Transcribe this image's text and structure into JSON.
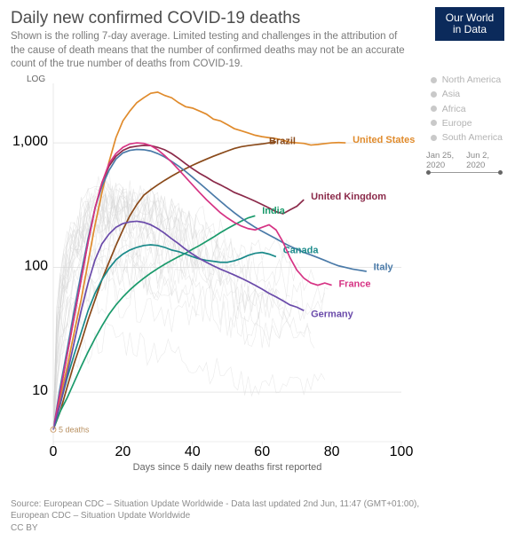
{
  "title": "Daily new confirmed COVID-19 deaths",
  "subtitle": "Shown is the rolling 7-day average. Limited testing and challenges in the attribution of the cause of death means that the number of confirmed deaths may not be an accurate count of the true number of deaths from COVID-19.",
  "logo_line1": "Our World",
  "logo_line2": "in Data",
  "scale_label": "LOG",
  "x_axis_label": "Days since 5 daily new deaths first reported",
  "origin_marker": "5 deaths",
  "legend_regions": [
    "North America",
    "Asia",
    "Africa",
    "Europe",
    "South America"
  ],
  "timeline": {
    "start": "Jan 25, 2020",
    "end": "Jun 2, 2020"
  },
  "source_line1": "Source: European CDC – Situation Update Worldwide - Data last updated 2nd Jun, 11:47 (GMT+01:00),",
  "source_line2": "European CDC – Situation Update Worldwide",
  "license": "CC BY",
  "chart": {
    "type": "line",
    "xlim": [
      0,
      100
    ],
    "xtick_step": 20,
    "y_scale": "log",
    "ylim": [
      4,
      3000
    ],
    "yticks": [
      10,
      100,
      1000
    ],
    "plot_bg": "#ffffff",
    "grid_color": "#d9d9d9",
    "axis_fontsize": 10.5,
    "label_fontsize": 11,
    "line_width": 1.7,
    "bg_line_color": "#d6d6d6",
    "bg_line_width": 0.6,
    "bg_line_opacity": 0.5
  },
  "series": [
    {
      "name": "United States",
      "color": "#e08b2c",
      "label_x": 86,
      "label_y": 1000,
      "data": [
        [
          0,
          5
        ],
        [
          2,
          9
        ],
        [
          4,
          16
        ],
        [
          6,
          30
        ],
        [
          8,
          55
        ],
        [
          10,
          110
        ],
        [
          12,
          220
        ],
        [
          14,
          400
        ],
        [
          16,
          700
        ],
        [
          18,
          1100
        ],
        [
          20,
          1500
        ],
        [
          22,
          1800
        ],
        [
          24,
          2100
        ],
        [
          26,
          2300
        ],
        [
          28,
          2500
        ],
        [
          30,
          2550
        ],
        [
          32,
          2400
        ],
        [
          34,
          2300
        ],
        [
          36,
          2100
        ],
        [
          38,
          1950
        ],
        [
          40,
          1900
        ],
        [
          42,
          1800
        ],
        [
          44,
          1700
        ],
        [
          46,
          1550
        ],
        [
          48,
          1500
        ],
        [
          50,
          1400
        ],
        [
          52,
          1300
        ],
        [
          54,
          1250
        ],
        [
          56,
          1200
        ],
        [
          58,
          1150
        ],
        [
          60,
          1120
        ],
        [
          62,
          1100
        ],
        [
          64,
          1080
        ],
        [
          66,
          1050
        ],
        [
          68,
          1010
        ],
        [
          70,
          1000
        ],
        [
          72,
          990
        ],
        [
          74,
          960
        ],
        [
          76,
          970
        ],
        [
          78,
          985
        ],
        [
          80,
          1000
        ],
        [
          82,
          1005
        ],
        [
          84,
          1000
        ]
      ]
    },
    {
      "name": "Brazil",
      "color": "#8a4a1a",
      "label_x": 62,
      "label_y": 980,
      "data": [
        [
          0,
          5
        ],
        [
          2,
          7
        ],
        [
          4,
          11
        ],
        [
          6,
          17
        ],
        [
          8,
          25
        ],
        [
          10,
          38
        ],
        [
          12,
          55
        ],
        [
          14,
          80
        ],
        [
          16,
          110
        ],
        [
          18,
          150
        ],
        [
          20,
          200
        ],
        [
          22,
          260
        ],
        [
          24,
          320
        ],
        [
          26,
          380
        ],
        [
          28,
          420
        ],
        [
          30,
          460
        ],
        [
          32,
          500
        ],
        [
          34,
          540
        ],
        [
          36,
          580
        ],
        [
          38,
          620
        ],
        [
          40,
          660
        ],
        [
          42,
          700
        ],
        [
          44,
          740
        ],
        [
          46,
          780
        ],
        [
          48,
          820
        ],
        [
          50,
          860
        ],
        [
          52,
          900
        ],
        [
          54,
          930
        ],
        [
          56,
          950
        ],
        [
          58,
          965
        ],
        [
          60,
          980
        ],
        [
          62,
          1000
        ],
        [
          64,
          1020
        ]
      ]
    },
    {
      "name": "United Kingdom",
      "color": "#8b2a4a",
      "label_x": 74,
      "label_y": 350,
      "data": [
        [
          0,
          5
        ],
        [
          2,
          10
        ],
        [
          4,
          20
        ],
        [
          6,
          40
        ],
        [
          8,
          80
        ],
        [
          10,
          160
        ],
        [
          12,
          300
        ],
        [
          14,
          480
        ],
        [
          16,
          650
        ],
        [
          18,
          780
        ],
        [
          20,
          870
        ],
        [
          22,
          920
        ],
        [
          24,
          940
        ],
        [
          26,
          955
        ],
        [
          28,
          950
        ],
        [
          30,
          920
        ],
        [
          32,
          880
        ],
        [
          34,
          820
        ],
        [
          36,
          750
        ],
        [
          38,
          680
        ],
        [
          40,
          620
        ],
        [
          42,
          570
        ],
        [
          44,
          530
        ],
        [
          46,
          490
        ],
        [
          48,
          460
        ],
        [
          50,
          430
        ],
        [
          52,
          400
        ],
        [
          54,
          380
        ],
        [
          56,
          360
        ],
        [
          58,
          340
        ],
        [
          60,
          320
        ],
        [
          62,
          300
        ],
        [
          64,
          280
        ],
        [
          66,
          270
        ],
        [
          68,
          290
        ],
        [
          70,
          310
        ],
        [
          72,
          350
        ]
      ]
    },
    {
      "name": "India",
      "color": "#1a9a6b",
      "label_x": 60,
      "label_y": 270,
      "data": [
        [
          0,
          5
        ],
        [
          2,
          7
        ],
        [
          4,
          9
        ],
        [
          6,
          12
        ],
        [
          8,
          16
        ],
        [
          10,
          21
        ],
        [
          12,
          27
        ],
        [
          14,
          34
        ],
        [
          16,
          42
        ],
        [
          18,
          50
        ],
        [
          20,
          58
        ],
        [
          22,
          66
        ],
        [
          24,
          74
        ],
        [
          26,
          82
        ],
        [
          28,
          90
        ],
        [
          30,
          98
        ],
        [
          32,
          106
        ],
        [
          34,
          114
        ],
        [
          36,
          122
        ],
        [
          38,
          130
        ],
        [
          40,
          140
        ],
        [
          42,
          150
        ],
        [
          44,
          162
        ],
        [
          46,
          175
        ],
        [
          48,
          190
        ],
        [
          50,
          205
        ],
        [
          52,
          220
        ],
        [
          54,
          235
        ],
        [
          56,
          250
        ],
        [
          58,
          260
        ]
      ]
    },
    {
      "name": "Italy",
      "color": "#4a7aa8",
      "label_x": 92,
      "label_y": 95,
      "data": [
        [
          0,
          5
        ],
        [
          2,
          11
        ],
        [
          4,
          22
        ],
        [
          6,
          45
        ],
        [
          8,
          90
        ],
        [
          10,
          170
        ],
        [
          12,
          300
        ],
        [
          14,
          450
        ],
        [
          16,
          600
        ],
        [
          18,
          740
        ],
        [
          20,
          830
        ],
        [
          22,
          870
        ],
        [
          24,
          885
        ],
        [
          26,
          880
        ],
        [
          28,
          860
        ],
        [
          30,
          820
        ],
        [
          32,
          770
        ],
        [
          34,
          710
        ],
        [
          36,
          650
        ],
        [
          38,
          590
        ],
        [
          40,
          530
        ],
        [
          42,
          475
        ],
        [
          44,
          425
        ],
        [
          46,
          380
        ],
        [
          48,
          340
        ],
        [
          50,
          305
        ],
        [
          52,
          275
        ],
        [
          54,
          250
        ],
        [
          56,
          228
        ],
        [
          58,
          210
        ],
        [
          60,
          195
        ],
        [
          62,
          182
        ],
        [
          64,
          170
        ],
        [
          66,
          158
        ],
        [
          68,
          148
        ],
        [
          70,
          140
        ],
        [
          72,
          132
        ],
        [
          74,
          126
        ],
        [
          76,
          120
        ],
        [
          78,
          114
        ],
        [
          80,
          108
        ],
        [
          82,
          103
        ],
        [
          84,
          100
        ],
        [
          86,
          97
        ],
        [
          88,
          95
        ],
        [
          90,
          93
        ]
      ]
    },
    {
      "name": "Canada",
      "color": "#1a8a8a",
      "label_x": 66,
      "label_y": 130,
      "data": [
        [
          0,
          5
        ],
        [
          2,
          8
        ],
        [
          4,
          13
        ],
        [
          6,
          20
        ],
        [
          8,
          30
        ],
        [
          10,
          45
        ],
        [
          12,
          62
        ],
        [
          14,
          80
        ],
        [
          16,
          98
        ],
        [
          18,
          115
        ],
        [
          20,
          128
        ],
        [
          22,
          138
        ],
        [
          24,
          145
        ],
        [
          26,
          150
        ],
        [
          28,
          152
        ],
        [
          30,
          150
        ],
        [
          32,
          145
        ],
        [
          34,
          138
        ],
        [
          36,
          134
        ],
        [
          38,
          128
        ],
        [
          40,
          122
        ],
        [
          42,
          117
        ],
        [
          44,
          114
        ],
        [
          46,
          112
        ],
        [
          48,
          110
        ],
        [
          50,
          110
        ],
        [
          52,
          113
        ],
        [
          54,
          118
        ],
        [
          56,
          125
        ],
        [
          58,
          130
        ],
        [
          60,
          132
        ],
        [
          62,
          128
        ],
        [
          64,
          122
        ]
      ]
    },
    {
      "name": "France",
      "color": "#d63384",
      "label_x": 82,
      "label_y": 70,
      "data": [
        [
          0,
          5
        ],
        [
          2,
          10
        ],
        [
          4,
          20
        ],
        [
          6,
          40
        ],
        [
          8,
          80
        ],
        [
          10,
          160
        ],
        [
          12,
          300
        ],
        [
          14,
          480
        ],
        [
          16,
          680
        ],
        [
          18,
          820
        ],
        [
          20,
          920
        ],
        [
          22,
          980
        ],
        [
          24,
          1000
        ],
        [
          26,
          990
        ],
        [
          28,
          950
        ],
        [
          30,
          880
        ],
        [
          32,
          790
        ],
        [
          34,
          700
        ],
        [
          36,
          610
        ],
        [
          38,
          530
        ],
        [
          40,
          460
        ],
        [
          42,
          400
        ],
        [
          44,
          350
        ],
        [
          46,
          310
        ],
        [
          48,
          275
        ],
        [
          50,
          250
        ],
        [
          52,
          230
        ],
        [
          54,
          215
        ],
        [
          56,
          205
        ],
        [
          58,
          200
        ],
        [
          60,
          210
        ],
        [
          62,
          220
        ],
        [
          64,
          200
        ],
        [
          66,
          160
        ],
        [
          68,
          120
        ],
        [
          70,
          95
        ],
        [
          72,
          82
        ],
        [
          74,
          75
        ],
        [
          76,
          72
        ],
        [
          78,
          75
        ],
        [
          80,
          72
        ]
      ]
    },
    {
      "name": "Germany",
      "color": "#6a4aaa",
      "label_x": 74,
      "label_y": 40,
      "data": [
        [
          0,
          5
        ],
        [
          2,
          8
        ],
        [
          4,
          14
        ],
        [
          6,
          25
        ],
        [
          8,
          45
        ],
        [
          10,
          75
        ],
        [
          12,
          115
        ],
        [
          14,
          155
        ],
        [
          16,
          185
        ],
        [
          18,
          210
        ],
        [
          20,
          225
        ],
        [
          22,
          232
        ],
        [
          24,
          235
        ],
        [
          26,
          230
        ],
        [
          28,
          220
        ],
        [
          30,
          205
        ],
        [
          32,
          188
        ],
        [
          34,
          170
        ],
        [
          36,
          155
        ],
        [
          38,
          140
        ],
        [
          40,
          128
        ],
        [
          42,
          118
        ],
        [
          44,
          110
        ],
        [
          46,
          103
        ],
        [
          48,
          97
        ],
        [
          50,
          92
        ],
        [
          52,
          87
        ],
        [
          54,
          82
        ],
        [
          56,
          77
        ],
        [
          58,
          72
        ],
        [
          60,
          67
        ],
        [
          62,
          62
        ],
        [
          64,
          58
        ],
        [
          66,
          54
        ],
        [
          68,
          50
        ],
        [
          70,
          48
        ],
        [
          72,
          45
        ]
      ]
    }
  ],
  "bg_series_count": 30
}
